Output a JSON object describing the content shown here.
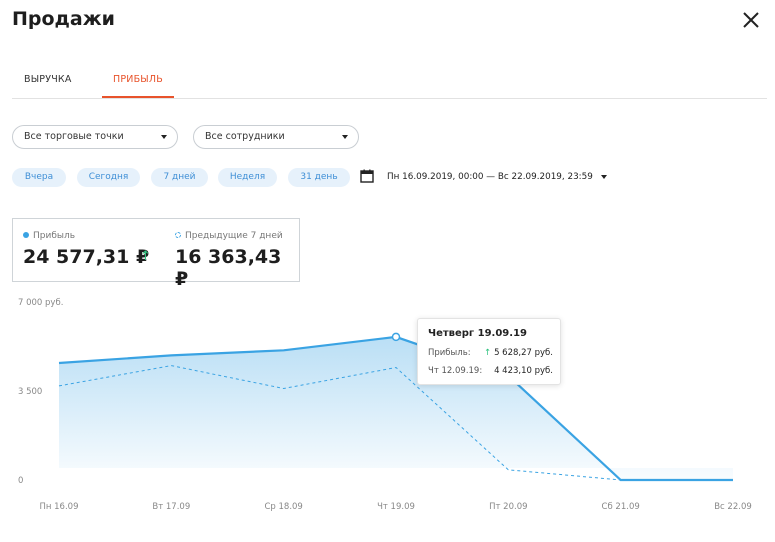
{
  "header": {
    "title": "Продажи",
    "close_icon": "close-icon"
  },
  "tabs": [
    {
      "label": "ВЫРУЧКА",
      "active": false
    },
    {
      "label": "ПРИБЫЛЬ",
      "active": true
    }
  ],
  "filters": {
    "stores": {
      "value": "Все торговые точки"
    },
    "employees": {
      "value": "Все сотрудники"
    }
  },
  "period_chips": [
    "Вчера",
    "Сегодня",
    "7 дней",
    "Неделя",
    "31 день"
  ],
  "date_range": {
    "icon": "calendar-icon",
    "label": "Пн 16.09.2019, 00:00 — Вс 22.09.2019, 23:59"
  },
  "legend": {
    "current": {
      "label": "Прибыль",
      "value": "24 577,31 ₽",
      "trend": "up"
    },
    "previous": {
      "label": "Предыдущие 7 дней",
      "value": "16 363,43 ₽"
    }
  },
  "colors": {
    "accent": "#e8532b",
    "series": "#3aa3e3",
    "up": "#2ec27e",
    "chip_bg": "#e6f1fb"
  },
  "chart_data": {
    "type": "area",
    "categories": [
      "Пн 16.09",
      "Вт 17.09",
      "Ср 18.09",
      "Чт 19.09",
      "Пт 20.09",
      "Сб 21.09",
      "Вс 22.09"
    ],
    "y_ticks": [
      "7 000 руб.",
      "3 500",
      "0"
    ],
    "ylim": [
      0,
      7000
    ],
    "series": [
      {
        "name": "Прибыль",
        "values": [
          4600,
          4900,
          5100,
          5628.27,
          4100,
          0,
          0
        ],
        "style": "solid-area"
      },
      {
        "name": "Предыдущие 7 дней",
        "values": [
          3700,
          4500,
          3600,
          4423.1,
          400,
          0,
          0
        ],
        "style": "dashed"
      }
    ],
    "grid": false
  },
  "tooltip": {
    "title": "Четверг 19.09.19",
    "rows": [
      {
        "label": "Прибыль:",
        "value": "5 628,27 руб.",
        "trend": "up"
      },
      {
        "label": "Чт 12.09.19:",
        "value": "4 423,10 руб."
      }
    ]
  }
}
